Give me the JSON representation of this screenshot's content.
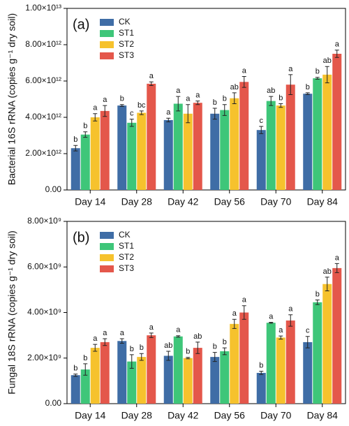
{
  "chart_data": [
    {
      "type": "bar",
      "panel_label": "(a)",
      "y_label": "Bacterial 16S rRNA (copies g⁻¹ dry soil)",
      "categories": [
        "Day 14",
        "Day 28",
        "Day 42",
        "Day 56",
        "Day 70",
        "Day 84"
      ],
      "ylim": [
        0,
        10000000000000.0
      ],
      "yticks": [
        {
          "value": 0,
          "label": "0.00"
        },
        {
          "value": 2000000000000.0,
          "label": "2.00×10¹²"
        },
        {
          "value": 4000000000000.0,
          "label": "4.00×10¹²"
        },
        {
          "value": 6000000000000.0,
          "label": "6.00×10¹²"
        },
        {
          "value": 8000000000000.0,
          "label": "8.00×10¹²"
        },
        {
          "value": 10000000000000.0,
          "label": "1.00×10¹³"
        }
      ],
      "series": [
        {
          "name": "CK",
          "color": "#3f6da6",
          "values": [
            2300000000000.0,
            4650000000000.0,
            3850000000000.0,
            4200000000000.0,
            3300000000000.0,
            5300000000000.0
          ],
          "errors": [
            150000000000.0,
            50000000000.0,
            100000000000.0,
            300000000000.0,
            200000000000.0,
            50000000000.0
          ],
          "letters": [
            "b",
            "b",
            "a",
            "b",
            "c",
            "b"
          ]
        },
        {
          "name": "ST1",
          "color": "#3ec679",
          "values": [
            3050000000000.0,
            3700000000000.0,
            4750000000000.0,
            4400000000000.0,
            4900000000000.0,
            6150000000000.0
          ],
          "errors": [
            150000000000.0,
            200000000000.0,
            400000000000.0,
            300000000000.0,
            250000000000.0,
            50000000000.0
          ],
          "letters": [
            "b",
            "c",
            "a",
            "b",
            "ab",
            "b"
          ]
        },
        {
          "name": "ST2",
          "color": "#f6c22d",
          "values": [
            4000000000000.0,
            4250000000000.0,
            4200000000000.0,
            5050000000000.0,
            4650000000000.0,
            6350000000000.0
          ],
          "errors": [
            200000000000.0,
            100000000000.0,
            500000000000.0,
            300000000000.0,
            100000000000.0,
            450000000000.0
          ],
          "letters": [
            "a",
            "bc",
            "a",
            "ab",
            "b",
            "ab"
          ]
        },
        {
          "name": "ST3",
          "color": "#e4574b",
          "values": [
            4350000000000.0,
            5850000000000.0,
            4800000000000.0,
            5950000000000.0,
            5800000000000.0,
            7500000000000.0
          ],
          "errors": [
            300000000000.0,
            100000000000.0,
            100000000000.0,
            300000000000.0,
            550000000000.0,
            200000000000.0
          ],
          "letters": [
            "a",
            "a",
            "a",
            "a",
            "a",
            "a"
          ]
        }
      ]
    },
    {
      "type": "bar",
      "panel_label": "(b)",
      "y_label": "Fungal 18S rRNA (copies g⁻¹ dry soil)",
      "categories": [
        "Day 14",
        "Day 28",
        "Day 42",
        "Day 56",
        "Day 70",
        "Day 84"
      ],
      "ylim": [
        0,
        8000000000.0
      ],
      "yticks": [
        {
          "value": 0,
          "label": "0.00"
        },
        {
          "value": 2000000000.0,
          "label": "2.00×10⁹"
        },
        {
          "value": 4000000000.0,
          "label": "4.00×10⁹"
        },
        {
          "value": 6000000000.0,
          "label": "6.00×10⁹"
        },
        {
          "value": 8000000000.0,
          "label": "8.00×10⁹"
        }
      ],
      "series": [
        {
          "name": "CK",
          "color": "#3f6da6",
          "values": [
            1250000000.0,
            2750000000.0,
            2100000000.0,
            2050000000.0,
            1350000000.0,
            2700000000.0
          ],
          "errors": [
            50000000.0,
            100000000.0,
            200000000.0,
            200000000.0,
            70000000.0,
            250000000.0
          ],
          "letters": [
            "b",
            "a",
            "ab",
            "b",
            "b",
            "c"
          ]
        },
        {
          "name": "ST1",
          "color": "#3ec679",
          "values": [
            1500000000.0,
            1850000000.0,
            2950000000.0,
            2300000000.0,
            3550000000.0,
            4450000000.0
          ],
          "errors": [
            250000000.0,
            300000000.0,
            30000000.0,
            150000000.0,
            20000000.0,
            100000000.0
          ],
          "letters": [
            "b",
            "b",
            "a",
            "b",
            "a",
            "b"
          ]
        },
        {
          "name": "ST2",
          "color": "#f6c22d",
          "values": [
            2450000000.0,
            2050000000.0,
            2000000000.0,
            3500000000.0,
            2900000000.0,
            5250000000.0
          ],
          "errors": [
            150000000.0,
            150000000.0,
            30000000.0,
            200000000.0,
            70000000.0,
            300000000.0
          ],
          "letters": [
            "a",
            "b",
            "b",
            "a",
            "a",
            "ab"
          ]
        },
        {
          "name": "ST3",
          "color": "#e4574b",
          "values": [
            2700000000.0,
            3000000000.0,
            2450000000.0,
            4000000000.0,
            3650000000.0,
            5950000000.0
          ],
          "errors": [
            150000000.0,
            100000000.0,
            250000000.0,
            300000000.0,
            250000000.0,
            200000000.0
          ],
          "letters": [
            "a",
            "a",
            "ab",
            "a",
            "a",
            "a"
          ]
        }
      ]
    }
  ]
}
